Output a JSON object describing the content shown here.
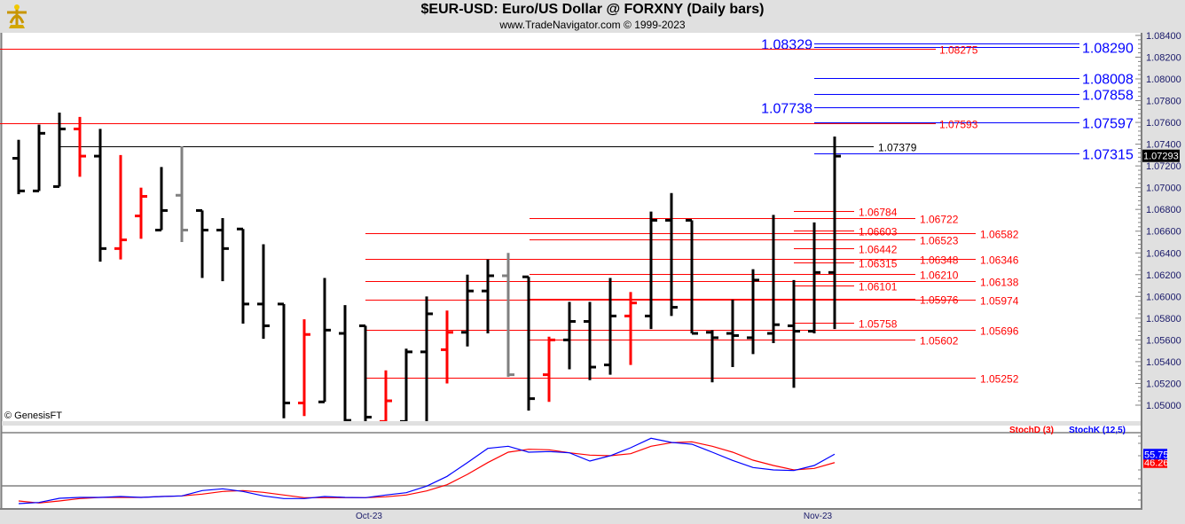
{
  "header": {
    "title": "$EUR-USD:  Euro/US Dollar @ FORXNY  (Daily bars)",
    "subtitle": "www.TradeNavigator.com © 1999-2023",
    "logo": "sextant-logo",
    "copyright": "© GenesisFT"
  },
  "colors": {
    "up": "#000000",
    "down": "#ff0000",
    "neutral": "#808080",
    "blue": "#0000ff",
    "red": "#ff0000",
    "black": "#000000"
  },
  "chart_data": [
    {
      "type": "ohlc-bar",
      "title": "$EUR-USD:  Euro/US Dollar @ FORXNY  (Daily bars)",
      "ylim": [
        1.04853,
        1.08424
      ],
      "yticks": [
        "1.08400",
        "1.08200",
        "1.08000",
        "1.07800",
        "1.07600",
        "1.07400",
        "1.07200",
        "1.07000",
        "1.06800",
        "1.06600",
        "1.06400",
        "1.06200",
        "1.06000",
        "1.05800",
        "1.05600",
        "1.05400",
        "1.05200",
        "1.05000"
      ],
      "xticks": [
        {
          "index": 17,
          "label": "Oct-23"
        },
        {
          "index": 39,
          "label": "Nov-23"
        }
      ],
      "last_price": "1.07293",
      "bars": [
        {
          "o": 1.0727,
          "h": 1.0744,
          "l": 1.0694,
          "c": 1.0697,
          "color": "up"
        },
        {
          "o": 1.0697,
          "h": 1.0758,
          "l": 1.0697,
          "c": 1.075,
          "color": "up"
        },
        {
          "o": 1.0701,
          "h": 1.0769,
          "l": 1.0701,
          "c": 1.0754,
          "color": "up"
        },
        {
          "o": 1.0754,
          "h": 1.0765,
          "l": 1.071,
          "c": 1.0729,
          "color": "down"
        },
        {
          "o": 1.0729,
          "h": 1.0754,
          "l": 1.0632,
          "c": 1.0644,
          "color": "up"
        },
        {
          "o": 1.0644,
          "h": 1.073,
          "l": 1.0634,
          "c": 1.0652,
          "color": "down"
        },
        {
          "o": 1.0674,
          "h": 1.07,
          "l": 1.0653,
          "c": 1.0692,
          "color": "down"
        },
        {
          "o": 1.0661,
          "h": 1.0719,
          "l": 1.0661,
          "c": 1.0679,
          "color": "up"
        },
        {
          "o": 1.0693,
          "h": 1.0738,
          "l": 1.065,
          "c": 1.0661,
          "color": "neutral"
        },
        {
          "o": 1.0679,
          "h": 1.0679,
          "l": 1.0617,
          "c": 1.0661,
          "color": "up"
        },
        {
          "o": 1.0661,
          "h": 1.0672,
          "l": 1.0614,
          "c": 1.0644,
          "color": "up"
        },
        {
          "o": 1.0662,
          "h": 1.0662,
          "l": 1.0575,
          "c": 1.0593,
          "color": "up"
        },
        {
          "o": 1.0593,
          "h": 1.0648,
          "l": 1.0561,
          "c": 1.0573,
          "color": "up"
        },
        {
          "o": 1.0593,
          "h": 1.0593,
          "l": 1.0488,
          "c": 1.0502,
          "color": "up"
        },
        {
          "o": 1.0502,
          "h": 1.0579,
          "l": 1.049,
          "c": 1.0565,
          "color": "down"
        },
        {
          "o": 1.0503,
          "h": 1.0617,
          "l": 1.0503,
          "c": 1.0569,
          "color": "up"
        },
        {
          "o": 1.0566,
          "h": 1.0592,
          "l": 1.0485,
          "c": 1.0486,
          "color": "up"
        },
        {
          "o": 1.0573,
          "h": 1.0573,
          "l": 1.0485,
          "c": 1.0489,
          "color": "up"
        },
        {
          "o": 1.0485,
          "h": 1.0532,
          "l": 1.0485,
          "c": 1.0504,
          "color": "down"
        },
        {
          "o": 1.0485,
          "h": 1.0552,
          "l": 1.0485,
          "c": 1.0549,
          "color": "up"
        },
        {
          "o": 1.0549,
          "h": 1.06,
          "l": 1.0485,
          "c": 1.0584,
          "color": "up"
        },
        {
          "o": 1.0551,
          "h": 1.0587,
          "l": 1.052,
          "c": 1.0567,
          "color": "down"
        },
        {
          "o": 1.0567,
          "h": 1.062,
          "l": 1.0554,
          "c": 1.0605,
          "color": "up"
        },
        {
          "o": 1.0605,
          "h": 1.0634,
          "l": 1.0566,
          "c": 1.0619,
          "color": "up"
        },
        {
          "o": 1.0619,
          "h": 1.064,
          "l": 1.0526,
          "c": 1.0528,
          "color": "neutral"
        },
        {
          "o": 1.0618,
          "h": 1.0618,
          "l": 1.0495,
          "c": 1.0506,
          "color": "up"
        },
        {
          "o": 1.0528,
          "h": 1.0563,
          "l": 1.0503,
          "c": 1.056,
          "color": "down"
        },
        {
          "o": 1.056,
          "h": 1.0595,
          "l": 1.0533,
          "c": 1.0577,
          "color": "up"
        },
        {
          "o": 1.0577,
          "h": 1.0595,
          "l": 1.0523,
          "c": 1.0535,
          "color": "up"
        },
        {
          "o": 1.0537,
          "h": 1.0617,
          "l": 1.0528,
          "c": 1.0582,
          "color": "up"
        },
        {
          "o": 1.0582,
          "h": 1.0604,
          "l": 1.0537,
          "c": 1.0594,
          "color": "down"
        },
        {
          "o": 1.0582,
          "h": 1.0678,
          "l": 1.057,
          "c": 1.067,
          "color": "up"
        },
        {
          "o": 1.067,
          "h": 1.0695,
          "l": 1.0582,
          "c": 1.059,
          "color": "up"
        },
        {
          "o": 1.067,
          "h": 1.067,
          "l": 1.0566,
          "c": 1.0566,
          "color": "up"
        },
        {
          "o": 1.0567,
          "h": 1.0569,
          "l": 1.0521,
          "c": 1.0562,
          "color": "up"
        },
        {
          "o": 1.0566,
          "h": 1.0597,
          "l": 1.0535,
          "c": 1.0564,
          "color": "up"
        },
        {
          "o": 1.0562,
          "h": 1.0625,
          "l": 1.0547,
          "c": 1.0615,
          "color": "up"
        },
        {
          "o": 1.0566,
          "h": 1.0675,
          "l": 1.0557,
          "c": 1.0574,
          "color": "up"
        },
        {
          "o": 1.0573,
          "h": 1.0615,
          "l": 1.0516,
          "c": 1.0568,
          "color": "up"
        },
        {
          "o": 1.0568,
          "h": 1.0668,
          "l": 1.0566,
          "c": 1.0622,
          "color": "up"
        },
        {
          "o": 1.0622,
          "h": 1.0747,
          "l": 1.057,
          "c": 1.0729,
          "color": "up"
        }
      ],
      "levels": [
        {
          "value": "1.08329",
          "group": "blue-left"
        },
        {
          "value": "1.08290",
          "group": "blue-right"
        },
        {
          "value": "1.08008",
          "group": "blue-right"
        },
        {
          "value": "1.07858",
          "group": "blue-right"
        },
        {
          "value": "1.07738",
          "group": "blue-left"
        },
        {
          "value": "1.07597",
          "group": "blue-right"
        },
        {
          "value": "1.07315",
          "group": "blue-right"
        },
        {
          "value": "1.08275",
          "group": "red-full"
        },
        {
          "value": "1.07593",
          "group": "red-full"
        },
        {
          "value": "1.07379",
          "group": "black"
        },
        {
          "value": "1.06582",
          "group": "red-a"
        },
        {
          "value": "1.06346",
          "group": "red-a"
        },
        {
          "value": "1.06138",
          "group": "red-a"
        },
        {
          "value": "1.05974",
          "group": "red-a"
        },
        {
          "value": "1.05696",
          "group": "red-a"
        },
        {
          "value": "1.05252",
          "group": "red-a"
        },
        {
          "value": "1.06722",
          "group": "red-b"
        },
        {
          "value": "1.06523",
          "group": "red-b"
        },
        {
          "value": "1.06348",
          "group": "red-b"
        },
        {
          "value": "1.06210",
          "group": "red-b"
        },
        {
          "value": "1.05976",
          "group": "red-b"
        },
        {
          "value": "1.05602",
          "group": "red-b"
        },
        {
          "value": "1.06784",
          "group": "red-c"
        },
        {
          "value": "1.06603",
          "group": "red-c"
        },
        {
          "value": "1.06442",
          "group": "red-c"
        },
        {
          "value": "1.06315",
          "group": "red-c"
        },
        {
          "value": "1.06101",
          "group": "red-c"
        },
        {
          "value": "1.05758",
          "group": "red-c"
        }
      ]
    },
    {
      "type": "line",
      "levels": [
        20,
        80
      ],
      "series": [
        {
          "name": "StochD (3)",
          "color": "#ff0000",
          "last": "46.26",
          "values": [
            3,
            0.7,
            3,
            5.7,
            7,
            7,
            7,
            8,
            8.7,
            10.7,
            13.7,
            14.7,
            12.7,
            9.7,
            6.7,
            6.7,
            6.7,
            6.7,
            7.7,
            9.7,
            14.3,
            21.3,
            33,
            46.3,
            58,
            61.3,
            60.7,
            57.3,
            54.7,
            54,
            56.3,
            64.7,
            68.7,
            69.7,
            64.7,
            58,
            49,
            43,
            38,
            39.7,
            46.26
          ]
        },
        {
          "name": "StochK (12,5)",
          "color": "#0000ff",
          "last": "55.75",
          "values": [
            0,
            1.3,
            6,
            7,
            7,
            8,
            7,
            8,
            8.7,
            14.7,
            16.7,
            13.7,
            8.7,
            5.7,
            5.7,
            8,
            7,
            6.7,
            9.7,
            12.3,
            19.7,
            30.7,
            46.3,
            62.3,
            64.7,
            58,
            58.7,
            57.3,
            48,
            54,
            63,
            73.7,
            69,
            67,
            58,
            48.7,
            40.7,
            38,
            37.3,
            43,
            55.75
          ]
        }
      ]
    }
  ]
}
